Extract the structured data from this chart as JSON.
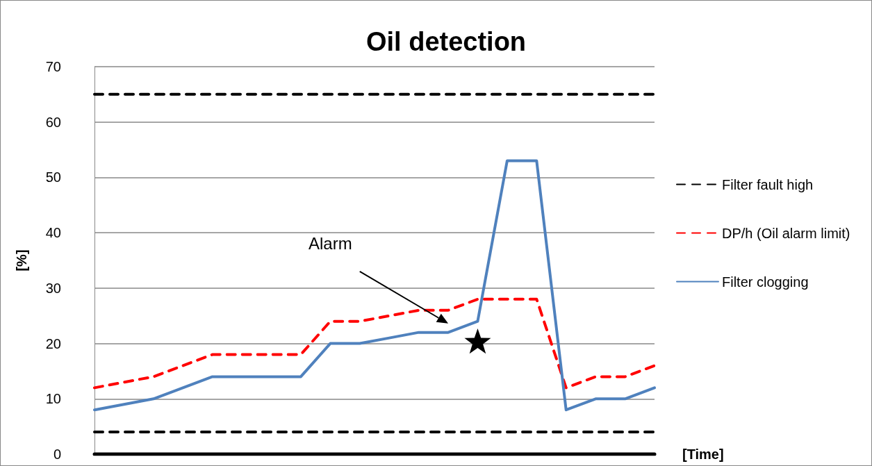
{
  "chart_data": {
    "type": "line",
    "title": "Oil detection",
    "xlabel": "[Time]",
    "ylabel": "[%]",
    "categories": [
      null,
      null,
      null,
      null,
      null,
      null,
      null,
      null,
      null,
      null,
      null,
      null,
      null,
      null,
      null,
      null,
      null,
      null,
      null,
      null
    ],
    "ylim": [
      0,
      70
    ],
    "yticks": [
      0,
      10,
      20,
      30,
      40,
      50,
      60,
      70
    ],
    "grid": "y",
    "legend": "right",
    "marker": "none",
    "annotations": [
      "Alarm"
    ],
    "series": [
      {
        "name": "Filter fault high",
        "color": "#000000",
        "line_style": "dashed",
        "values": [
          65,
          65,
          65,
          65,
          65,
          65,
          65,
          65,
          65,
          65,
          65,
          65,
          65,
          65,
          65,
          65,
          65,
          65,
          65,
          65
        ]
      },
      {
        "color": "#000000",
        "line_style": "dashed",
        "values": [
          4,
          4,
          4,
          4,
          4,
          4,
          4,
          4,
          4,
          4,
          4,
          4,
          4,
          4,
          4,
          4,
          4,
          4,
          4,
          4
        ]
      },
      {
        "color": "#000000",
        "line_style": "solid",
        "values": [
          0,
          0,
          0,
          0,
          0,
          0,
          0,
          0,
          0,
          0,
          0,
          0,
          0,
          0,
          0,
          0,
          0,
          0,
          0,
          0
        ]
      },
      {
        "name": "DP/h (Oil alarm limit)",
        "color": "#ff0000",
        "line_style": "dashed",
        "values": [
          12,
          13,
          14,
          16,
          18,
          18,
          18,
          18,
          24,
          24,
          25,
          26,
          26,
          28,
          28,
          28,
          12,
          14,
          14,
          16
        ]
      },
      {
        "name": "Filter clogging",
        "color": "#4f81bd",
        "line_style": "solid",
        "values": [
          8,
          9,
          10,
          12,
          14,
          14,
          14,
          14,
          20,
          20,
          21,
          22,
          22,
          24,
          53,
          53,
          8,
          10,
          10,
          12
        ]
      }
    ]
  }
}
